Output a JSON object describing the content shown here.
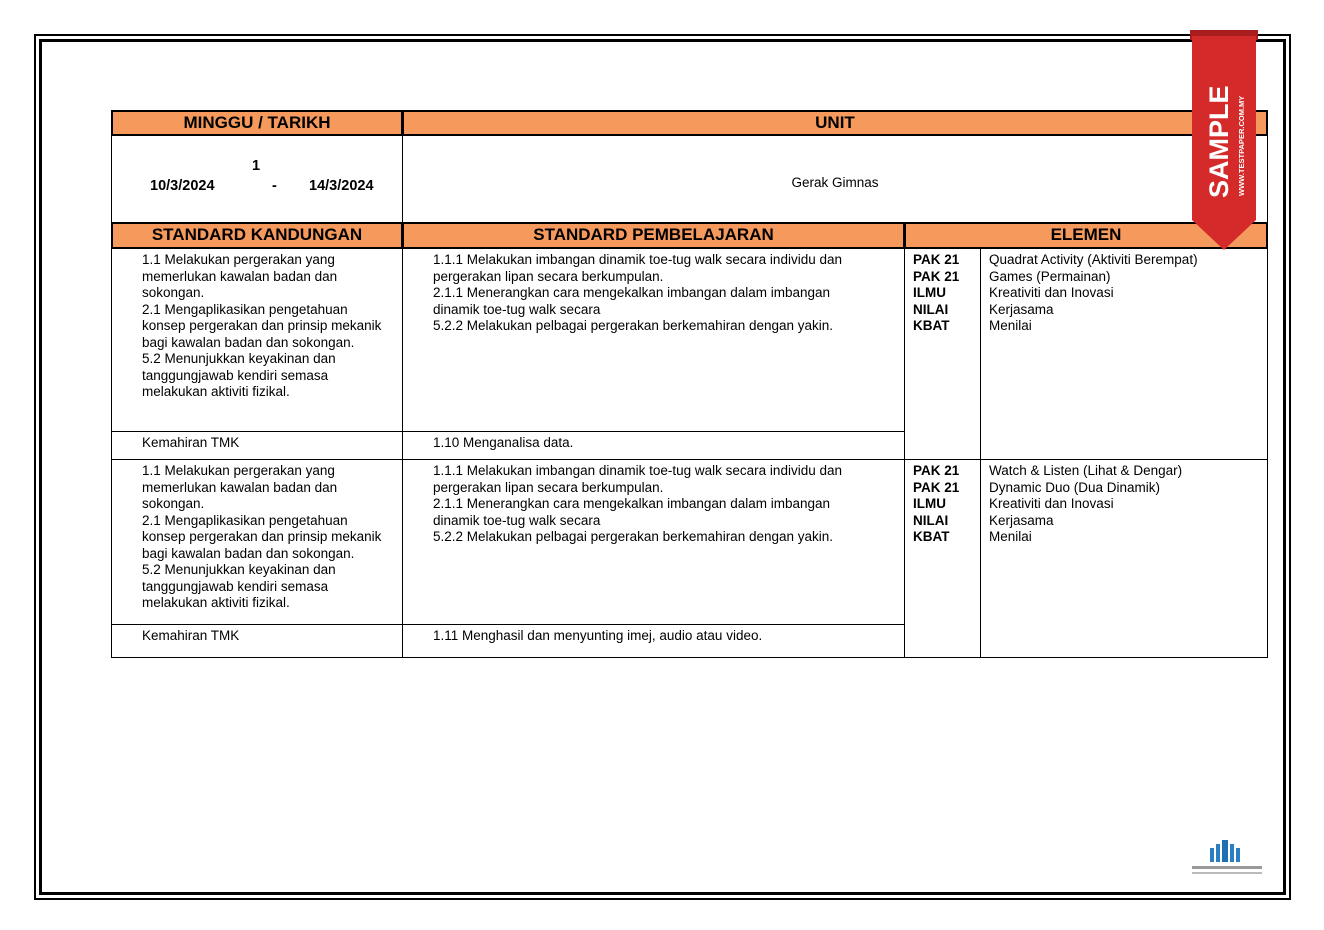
{
  "header": {
    "week_date_label": "MINGGU / TARIKH",
    "unit_label": "UNIT"
  },
  "week": {
    "number": "1",
    "start": "10/3/2024",
    "separator": "-",
    "end": "14/3/2024"
  },
  "unit": {
    "value": "Gerak Gimnas"
  },
  "columns": {
    "sk": "STANDARD KANDUNGAN",
    "sp": "STANDARD PEMBELAJARAN",
    "elemen": "ELEMEN"
  },
  "rows": [
    {
      "sk": "1.1 Melakukan pergerakan yang\nmemerlukan kawalan badan dan\nsokongan.\n2.1 Mengaplikasikan pengetahuan\nkonsep pergerakan dan prinsip mekanik\nbagi kawalan badan dan sokongan.\n5.2 Menunjukkan keyakinan dan\ntanggungjawab kendiri semasa\nmelakukan aktiviti fizikal.",
      "sp": "1.1.1 Melakukan imbangan dinamik toe-tug walk secara individu dan\npergerakan lipan secara berkumpulan.\n2.1.1 Menerangkan cara mengekalkan imbangan dalam imbangan\ndinamik toe-tug walk secara\n5.2.2 Melakukan pelbagai pergerakan berkemahiran dengan yakin.",
      "el_keys": "PAK 21\nPAK 21\nILMU\nNILAI\nKBAT",
      "el_vals": "Quadrat Activity (Aktiviti Berempat)\nGames (Permainan)\nKreativiti dan Inovasi\nKerjasama\nMenilai",
      "tmk_label": "Kemahiran TMK",
      "tmk_value": "1.10 Menganalisa data."
    },
    {
      "sk": "1.1 Melakukan pergerakan yang\nmemerlukan kawalan badan dan\nsokongan.\n2.1 Mengaplikasikan pengetahuan\nkonsep pergerakan dan prinsip mekanik\nbagi kawalan badan dan sokongan.\n5.2 Menunjukkan keyakinan dan\ntanggungjawab kendiri semasa\nmelakukan aktiviti fizikal.",
      "sp": "1.1.1 Melakukan imbangan dinamik toe-tug walk secara individu dan\npergerakan lipan secara berkumpulan.\n2.1.1 Menerangkan cara mengekalkan imbangan dalam imbangan\ndinamik toe-tug walk secara\n5.2.2 Melakukan pelbagai pergerakan berkemahiran dengan yakin.",
      "el_keys": "PAK 21\nPAK 21\nILMU\nNILAI\nKBAT",
      "el_vals": "Watch & Listen (Lihat & Dengar)\nDynamic Duo (Dua Dinamik)\nKreativiti dan Inovasi\nKerjasama\nMenilai",
      "tmk_label": "Kemahiran TMK",
      "tmk_value": "1.11 Menghasil dan menyunting imej, audio atau video."
    }
  ],
  "watermark": {
    "text": "SAMPLE",
    "site": "WWW.TESTPAPER.COM.MY",
    "color": "#D42A2A"
  },
  "colors": {
    "header_bg": "#F59A5C"
  }
}
